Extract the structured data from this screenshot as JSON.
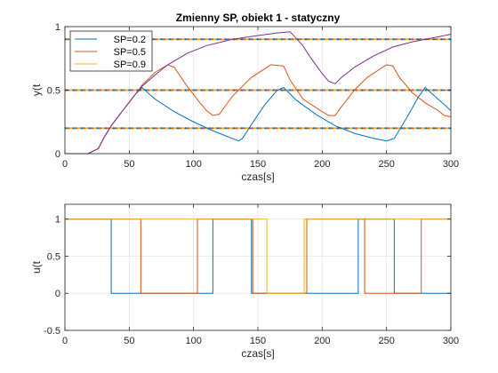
{
  "colors": {
    "background": "#ffffff",
    "axes_bg": "#ffffff",
    "axis": "#262626",
    "grid": "#e6e6e6",
    "blue": "#0072BD",
    "orange": "#D95319",
    "yellow": "#EDB120",
    "purple": "#7E2F8E"
  },
  "chart_data": [
    {
      "type": "line",
      "title": "Zmienny SP, obiekt 1 - statyczny",
      "xlabel": "czas[s]",
      "ylabel": "y(t",
      "xlim": [
        0,
        300
      ],
      "ylim": [
        0,
        1
      ],
      "xticks": [
        0,
        50,
        100,
        150,
        200,
        250,
        300
      ],
      "yticks": [
        0,
        0.5,
        1
      ],
      "ytick_labels": [
        "0",
        "0.5",
        "1"
      ],
      "grid": true,
      "legend": {
        "location": "top-left",
        "entries": [
          "SP=0.2",
          "SP=0.5",
          "SP=0.9"
        ]
      },
      "series": [
        {
          "name": "SP=0.2",
          "color": "#0072BD",
          "x": [
            0,
            18,
            26,
            30,
            36,
            45,
            55,
            60,
            70,
            85,
            100,
            115,
            130,
            135,
            138,
            145,
            155,
            165,
            170,
            180,
            195,
            210,
            225,
            240,
            250,
            256,
            265,
            275,
            280,
            290,
            300
          ],
          "y": [
            0,
            0,
            0.04,
            0.12,
            0.22,
            0.34,
            0.47,
            0.52,
            0.43,
            0.33,
            0.25,
            0.18,
            0.12,
            0.1,
            0.12,
            0.23,
            0.38,
            0.5,
            0.52,
            0.42,
            0.31,
            0.22,
            0.16,
            0.12,
            0.1,
            0.12,
            0.27,
            0.45,
            0.52,
            0.43,
            0.34
          ]
        },
        {
          "name": "SP=0.5",
          "color": "#D95319",
          "x": [
            0,
            18,
            26,
            30,
            36,
            45,
            55,
            60,
            70,
            80,
            85,
            95,
            105,
            110,
            115,
            120,
            130,
            145,
            160,
            170,
            175,
            185,
            200,
            205,
            210,
            215,
            225,
            235,
            250,
            255,
            260,
            270,
            280,
            290,
            295,
            300
          ],
          "y": [
            0,
            0,
            0.04,
            0.12,
            0.22,
            0.34,
            0.47,
            0.54,
            0.64,
            0.7,
            0.68,
            0.53,
            0.4,
            0.34,
            0.3,
            0.31,
            0.45,
            0.6,
            0.7,
            0.69,
            0.58,
            0.43,
            0.33,
            0.3,
            0.3,
            0.37,
            0.5,
            0.6,
            0.7,
            0.69,
            0.6,
            0.48,
            0.4,
            0.34,
            0.3,
            0.29
          ]
        },
        {
          "name": "SP=0.9",
          "color": "#EDB120",
          "x": [],
          "y": []
        },
        {
          "name": "",
          "color": "#7E2F8E",
          "x": [
            0,
            18,
            22,
            26,
            30,
            36,
            45,
            55,
            60,
            70,
            80,
            95,
            110,
            130,
            150,
            165,
            175,
            185,
            190,
            195,
            200,
            205,
            210,
            215,
            225,
            240,
            255,
            270,
            285,
            300
          ],
          "y": [
            0,
            0,
            0.02,
            0.04,
            0.12,
            0.22,
            0.34,
            0.47,
            0.53,
            0.62,
            0.7,
            0.79,
            0.85,
            0.9,
            0.93,
            0.95,
            0.96,
            0.85,
            0.77,
            0.7,
            0.63,
            0.57,
            0.55,
            0.6,
            0.68,
            0.77,
            0.84,
            0.88,
            0.91,
            0.94
          ]
        }
      ],
      "reference_lines": [
        {
          "y": 0.2,
          "color": "#0072BD",
          "style": "dotted"
        },
        {
          "y": 0.2,
          "color": "#D95319",
          "style": "dotted"
        },
        {
          "y": 0.2,
          "color": "#EDB120",
          "style": "dotted"
        },
        {
          "y": 0.5,
          "color": "#0072BD",
          "style": "dotted"
        },
        {
          "y": 0.5,
          "color": "#D95319",
          "style": "dotted"
        },
        {
          "y": 0.5,
          "color": "#EDB120",
          "style": "dotted"
        },
        {
          "y": 0.9,
          "color": "#0072BD",
          "style": "dotted"
        },
        {
          "y": 0.9,
          "color": "#D95319",
          "style": "dotted"
        },
        {
          "y": 0.9,
          "color": "#EDB120",
          "style": "dotted"
        }
      ]
    },
    {
      "type": "line",
      "title": "",
      "xlabel": "czas[s]",
      "ylabel": "u(t",
      "xlim": [
        0,
        300
      ],
      "ylim": [
        -0.5,
        1.2
      ],
      "xticks": [
        0,
        50,
        100,
        150,
        200,
        250,
        300
      ],
      "yticks": [
        -0.5,
        0,
        0.5,
        1
      ],
      "ytick_labels": [
        "-0.5",
        "0",
        "0.5",
        "1"
      ],
      "grid": true,
      "legend": null,
      "series": [
        {
          "name": "SP=0.2",
          "color": "#0072BD",
          "x": [
            0,
            0,
            1,
            1,
            36,
            36,
            115,
            115,
            145,
            145,
            228,
            228,
            256,
            256,
            300
          ],
          "y": [
            0,
            1,
            1,
            1,
            1,
            0,
            0,
            1,
            1,
            0,
            0,
            1,
            1,
            0,
            0
          ]
        },
        {
          "name": "SP=0.5",
          "color": "#D95319",
          "x": [
            0,
            0,
            1,
            1,
            59,
            59,
            103,
            103,
            146,
            146,
            188,
            188,
            233,
            233,
            277,
            277,
            300
          ],
          "y": [
            0,
            1,
            1,
            1,
            1,
            0,
            0,
            1,
            1,
            0,
            0,
            1,
            1,
            0,
            0,
            1,
            1
          ]
        },
        {
          "name": "SP=0.9",
          "color": "#EDB120",
          "x": [
            0,
            0,
            2,
            2,
            157,
            157,
            186,
            186,
            300
          ],
          "y": [
            0,
            1,
            1,
            1,
            1,
            0,
            0,
            1,
            1
          ]
        }
      ]
    }
  ]
}
